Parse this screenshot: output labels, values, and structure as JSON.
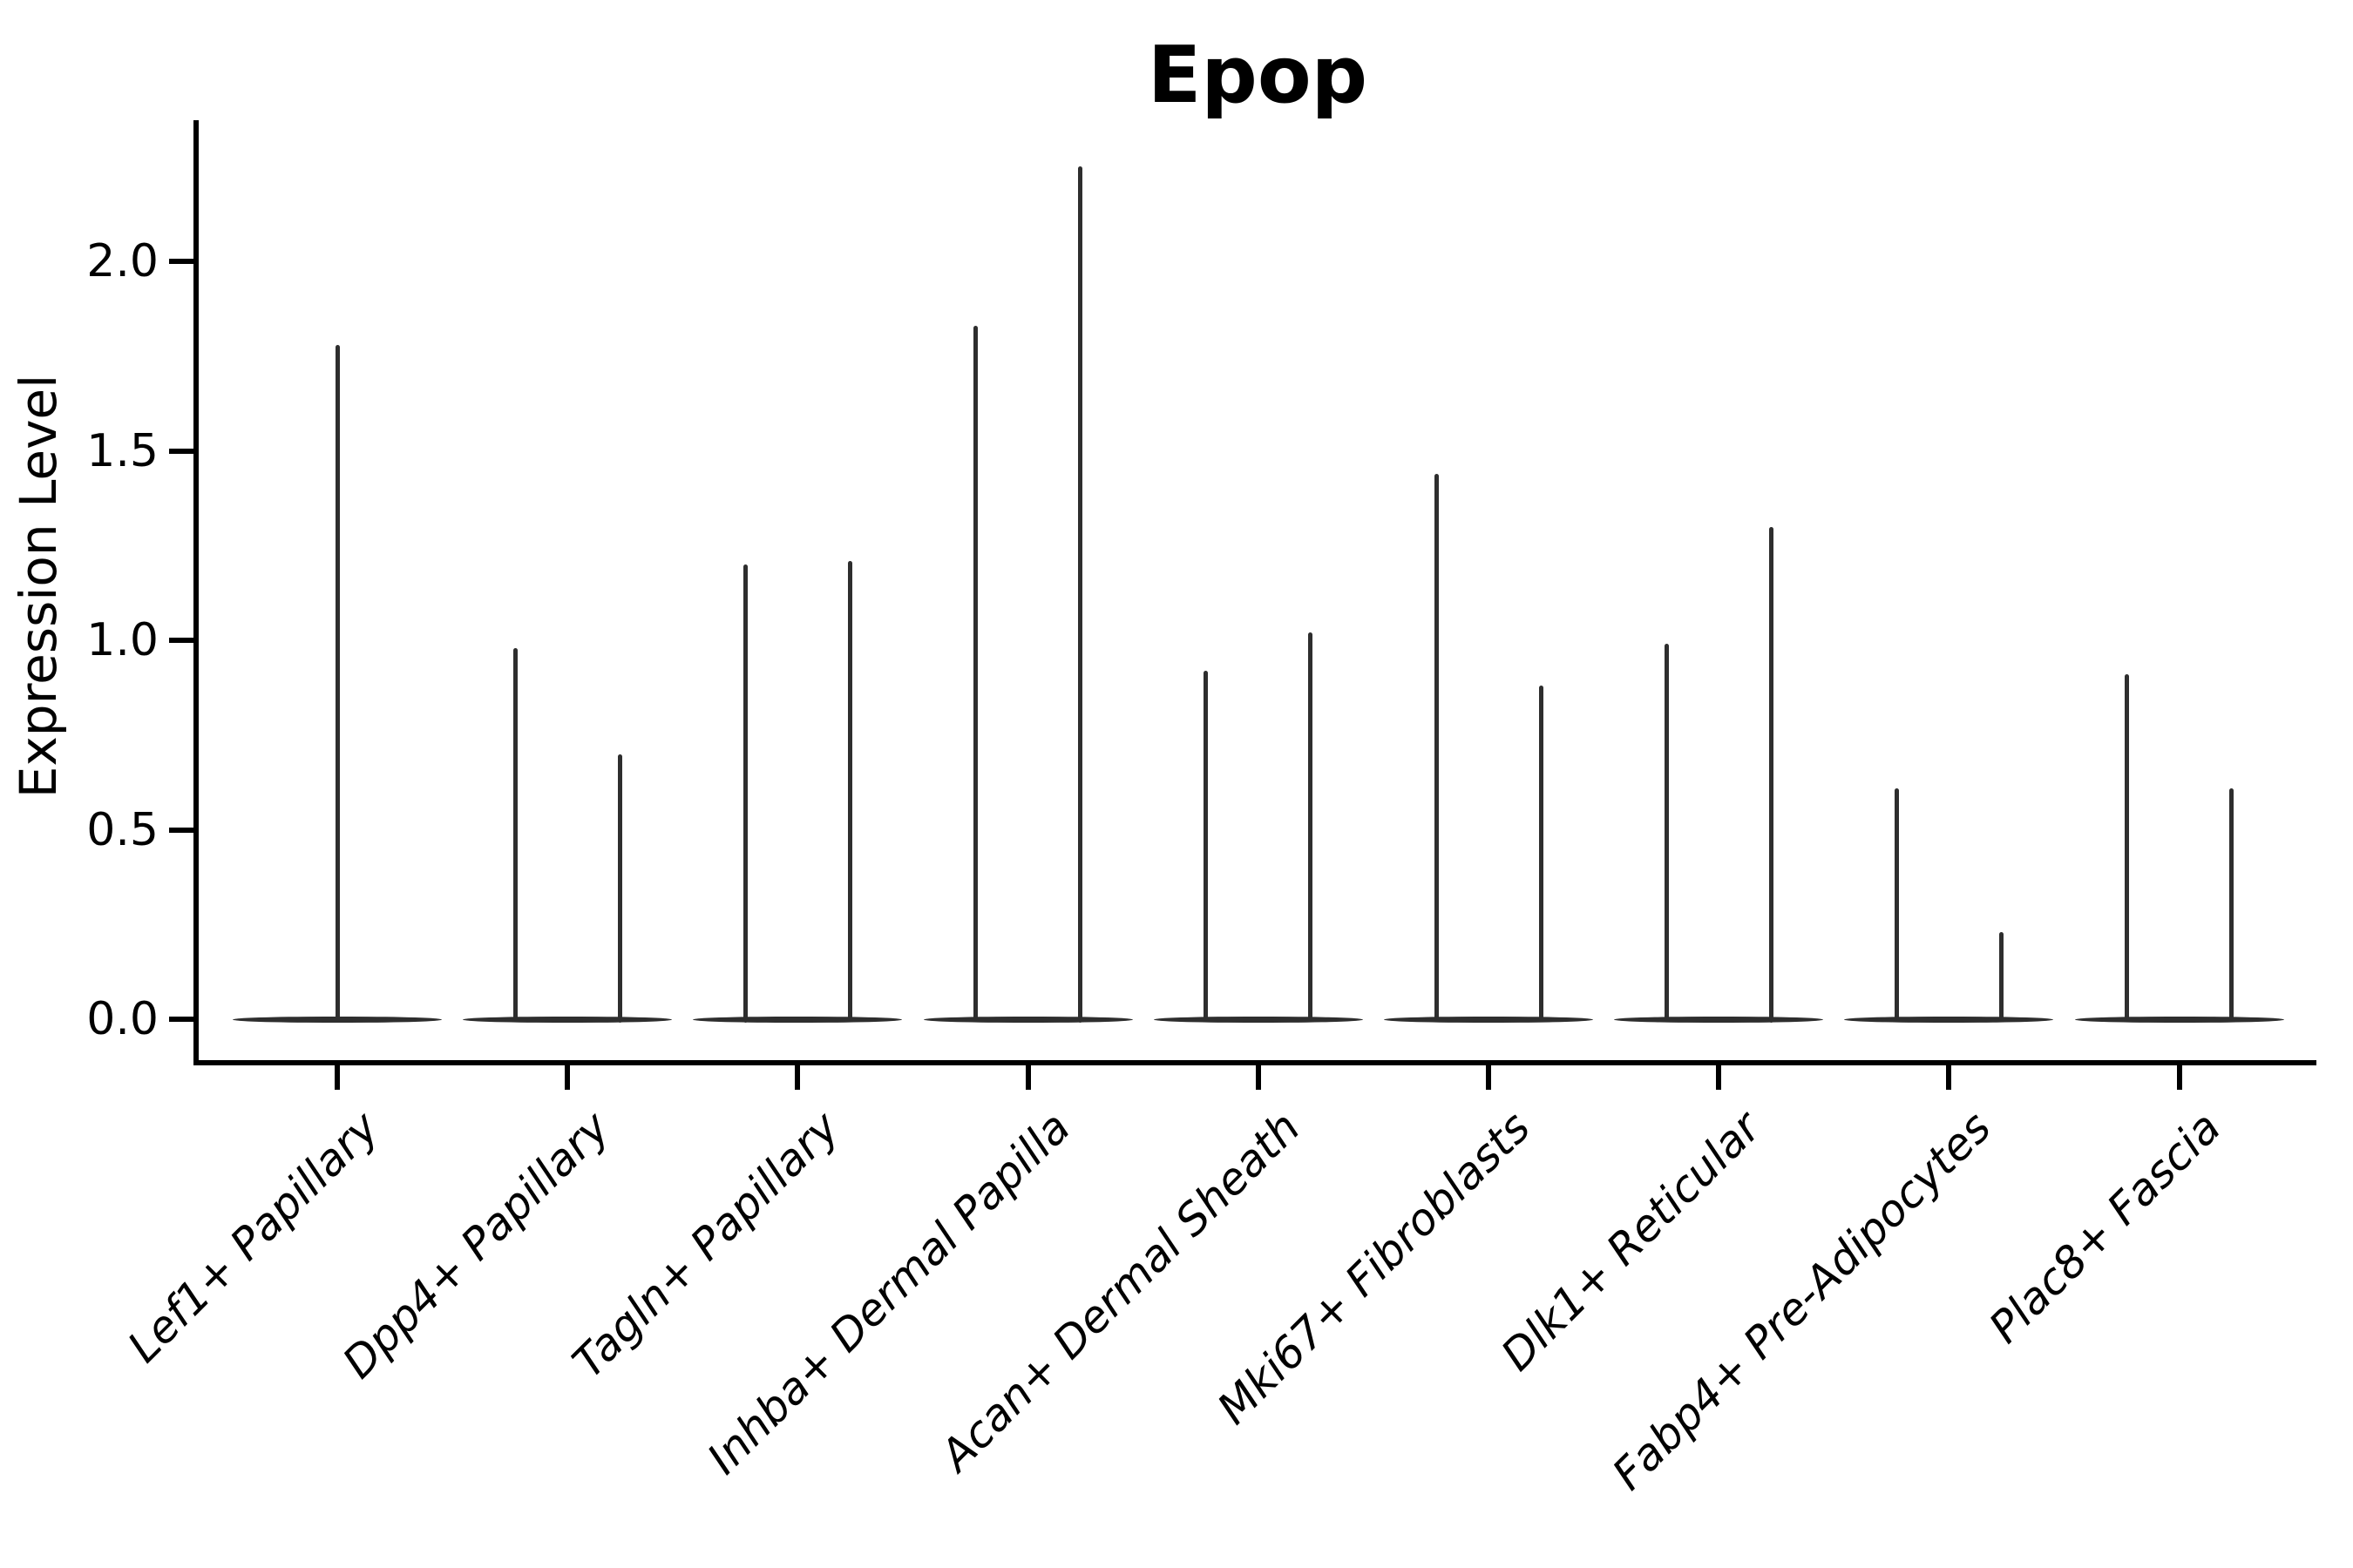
{
  "chart_data": {
    "type": "violin",
    "title": "Epop",
    "ylabel": "Expression Level",
    "xlabel": "",
    "legend_position": "none",
    "grid": false,
    "background_color": "#ffffff",
    "line_color": "#2e2e2e",
    "axis_color": "#000000",
    "ylim": [
      -0.11,
      2.37
    ],
    "ytick_labels": [
      "0.0",
      "0.5",
      "1.0",
      "1.5",
      "2.0"
    ],
    "ytick_values": [
      0.0,
      0.5,
      1.0,
      1.5,
      2.0
    ],
    "categories": [
      "Lef1+ Papillary",
      "Dpp4+ Papillary",
      "Tagln+ Papillary",
      "Inhba+ Dermal Papilla",
      "Acan+ Dermal Sheath",
      "Mki67+ Fibroblasts",
      "Dlk1+ Reticular",
      "Fabp4+ Pre-Adipocytes",
      "Plac8+ Fascia"
    ],
    "xtick_label_style": "italic, rotated 45 degrees, right-anchored",
    "violin_shape_note": "Each violin is collapsed flat at expression 0 (wide thin horizontal body) with a single thin vertical spike reaching the maximum expression value; categories 2-9 contain two adjacent violins, category 1 contains one full-width violin.",
    "violins": [
      {
        "category": "Lef1+ Papillary",
        "max_spikes": [
          1.78
        ]
      },
      {
        "category": "Dpp4+ Papillary",
        "max_spikes": [
          0.98,
          0.7
        ]
      },
      {
        "category": "Tagln+ Papillary",
        "max_spikes": [
          1.2,
          1.21
        ]
      },
      {
        "category": "Inhba+ Dermal Papilla",
        "max_spikes": [
          1.83,
          2.25
        ]
      },
      {
        "category": "Acan+ Dermal Sheath",
        "max_spikes": [
          0.92,
          1.02
        ]
      },
      {
        "category": "Mki67+ Fibroblasts",
        "max_spikes": [
          1.44,
          0.88
        ]
      },
      {
        "category": "Dlk1+ Reticular",
        "max_spikes": [
          0.99,
          1.3
        ]
      },
      {
        "category": "Fabp4+ Pre-Adipocytes",
        "max_spikes": [
          0.61,
          0.23
        ]
      },
      {
        "category": "Plac8+ Fascia",
        "max_spikes": [
          0.91,
          0.61
        ]
      }
    ]
  }
}
